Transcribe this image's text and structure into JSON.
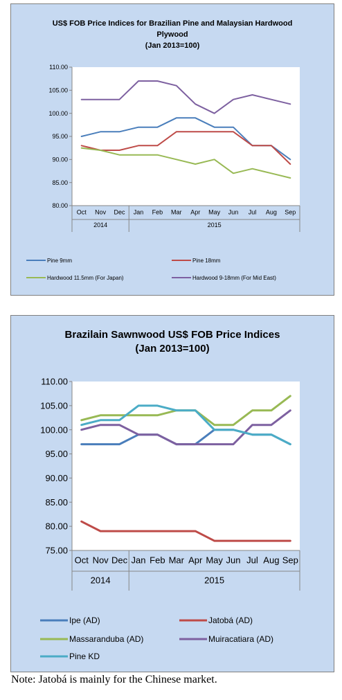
{
  "chart_data": [
    {
      "type": "line",
      "title_lines": [
        "US$ FOB Price Indices for Brazilian Pine and Malaysian Hardwood",
        "Plywood",
        "(Jan 2013=100)"
      ],
      "categories": [
        "Oct",
        "Nov",
        "Dec",
        "Jan",
        "Feb",
        "Mar",
        "Apr",
        "May",
        "Jun",
        "Jul",
        "Aug",
        "Sep"
      ],
      "year_groups": [
        {
          "label": "2014",
          "span": 3
        },
        {
          "label": "2015",
          "span": 9
        }
      ],
      "ylim": [
        80,
        110
      ],
      "yticks": [
        "80.00",
        "85.00",
        "90.00",
        "95.00",
        "100.00",
        "105.00",
        "110.00"
      ],
      "grid": false,
      "legend_position": "bottom",
      "series": [
        {
          "name": "Pine 9mm",
          "color": "#4a7ebb",
          "values": [
            95,
            96,
            96,
            97,
            97,
            99,
            99,
            97,
            97,
            93,
            93,
            90
          ]
        },
        {
          "name": "Pine 18mm",
          "color": "#be4b48",
          "values": [
            93,
            92,
            92,
            93,
            93,
            96,
            96,
            96,
            96,
            93,
            93,
            89
          ]
        },
        {
          "name": "Hardwood 11.5mm (For Japan)",
          "color": "#98b954",
          "values": [
            92.5,
            92,
            91,
            91,
            91,
            90,
            89,
            90,
            87,
            88,
            87,
            86
          ]
        },
        {
          "name": "Hardwood 9-18mm (For Mid East)",
          "color": "#7d60a0",
          "values": [
            103,
            103,
            103,
            107,
            107,
            106,
            102,
            100,
            103,
            104,
            103,
            102
          ]
        }
      ]
    },
    {
      "type": "line",
      "title_lines": [
        "Brazilain Sawnwood US$ FOB Price Indices",
        "(Jan 2013=100)"
      ],
      "categories": [
        "Oct",
        "Nov",
        "Dec",
        "Jan",
        "Feb",
        "Mar",
        "Apr",
        "May",
        "Jun",
        "Jul",
        "Aug",
        "Sep"
      ],
      "year_groups": [
        {
          "label": "2014",
          "span": 3
        },
        {
          "label": "2015",
          "span": 9
        }
      ],
      "ylim": [
        75,
        110
      ],
      "yticks": [
        "75.00",
        "80.00",
        "85.00",
        "90.00",
        "95.00",
        "100.00",
        "105.00",
        "110.00"
      ],
      "grid": false,
      "legend_position": "bottom",
      "series": [
        {
          "name": "Ipe (AD)",
          "color": "#4a7ebb",
          "values": [
            97,
            97,
            97,
            99,
            99,
            97,
            97,
            100,
            100,
            99,
            99,
            97
          ]
        },
        {
          "name": "Jatobá (AD)",
          "color": "#be4b48",
          "values": [
            81,
            79,
            79,
            79,
            79,
            79,
            79,
            77,
            77,
            77,
            77,
            77
          ]
        },
        {
          "name": "Massaranduba (AD)",
          "color": "#98b954",
          "values": [
            102,
            103,
            103,
            103,
            103,
            104,
            104,
            101,
            101,
            104,
            104,
            107
          ]
        },
        {
          "name": "Muiracatiara (AD)",
          "color": "#7d60a0",
          "values": [
            100,
            101,
            101,
            99,
            99,
            97,
            97,
            97,
            97,
            101,
            101,
            104
          ]
        },
        {
          "name": "Pine KD",
          "color": "#4bacc6",
          "values": [
            101,
            102,
            102,
            105,
            105,
            104,
            104,
            100,
            100,
            99,
            99,
            97
          ]
        }
      ]
    }
  ],
  "note": "Note: Jatobá is mainly for the Chinese market."
}
